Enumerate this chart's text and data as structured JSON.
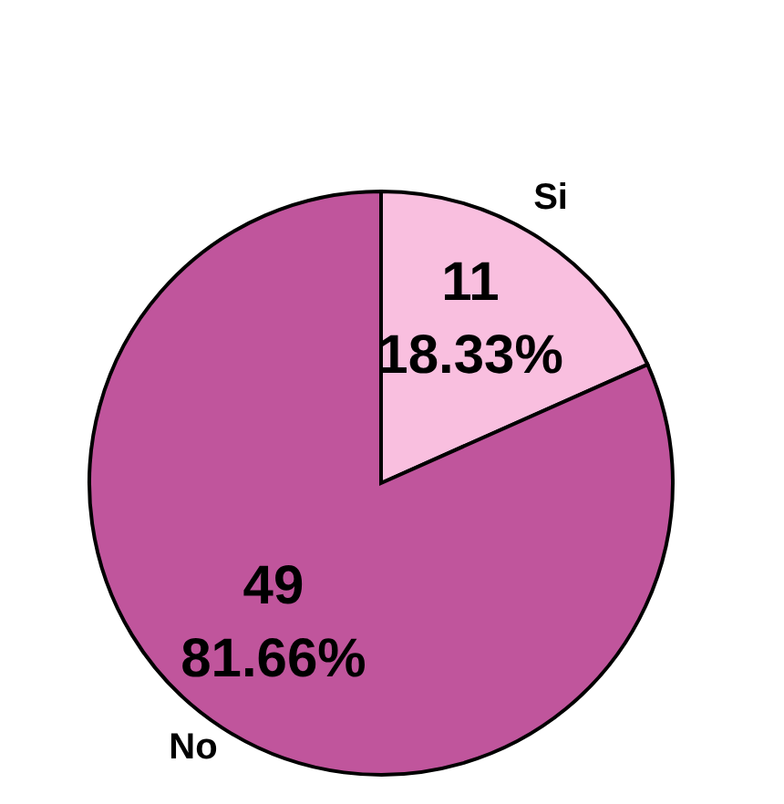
{
  "chart_data": {
    "type": "pie",
    "categories": [
      "Si",
      "No"
    ],
    "values": [
      11,
      49
    ],
    "value_labels": [
      "11 18.33%",
      "49 81.66%"
    ],
    "colors": [
      "#f9bfdf",
      "#c0559c"
    ]
  }
}
